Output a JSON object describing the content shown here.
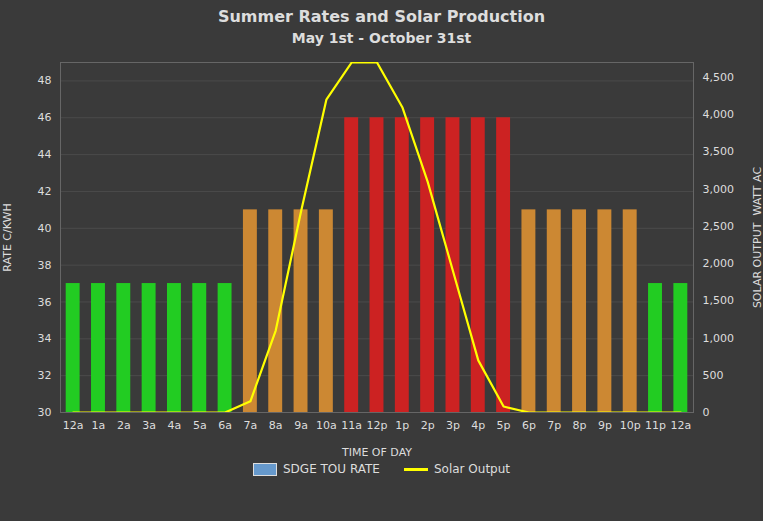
{
  "chart_data": {
    "type": "bar",
    "title": "Summer Rates and Solar Production",
    "subtitle": "May 1st - October 31st",
    "xlabel": "TIME OF DAY",
    "ylabel": "RATE C/KWH",
    "y2label": "SOLAR OUTPUT  WATT AC",
    "categories": [
      "12a",
      "1a",
      "2a",
      "3a",
      "4a",
      "5a",
      "6a",
      "7a",
      "8a",
      "9a",
      "10a",
      "11a",
      "12p",
      "1p",
      "2p",
      "3p",
      "4p",
      "5p",
      "6p",
      "7p",
      "8p",
      "9p",
      "10p",
      "11p",
      "12a"
    ],
    "series": [
      {
        "name": "SDGE TOU RATE",
        "type": "bar",
        "color": "#6699cc",
        "colors": [
          "#22cc22",
          "#22cc22",
          "#22cc22",
          "#22cc22",
          "#22cc22",
          "#22cc22",
          "#22cc22",
          "#cc8833",
          "#cc8833",
          "#cc8833",
          "#cc8833",
          "#cc2222",
          "#cc2222",
          "#cc2222",
          "#cc2222",
          "#cc2222",
          "#cc2222",
          "#cc2222",
          "#cc8833",
          "#cc8833",
          "#cc8833",
          "#cc8833",
          "#cc8833",
          "#22cc22",
          "#22cc22"
        ],
        "values": [
          37,
          37,
          37,
          37,
          37,
          37,
          37,
          41,
          41,
          41,
          41,
          46,
          46,
          46,
          46,
          46,
          46,
          46,
          41,
          41,
          41,
          41,
          41,
          37,
          37
        ]
      },
      {
        "name": "Solar Output",
        "type": "line",
        "axis": "y2",
        "color": "#ffff00",
        "values": [
          0,
          0,
          0,
          0,
          0,
          0,
          0,
          150,
          1100,
          2700,
          4200,
          4700,
          4700,
          4100,
          3100,
          1900,
          700,
          80,
          0,
          0,
          0,
          0,
          0,
          0,
          0
        ]
      }
    ],
    "ylim": [
      30,
      49
    ],
    "yticks": [
      30,
      32,
      34,
      36,
      38,
      40,
      42,
      44,
      46,
      48
    ],
    "y2lim": [
      0,
      4700
    ],
    "y2ticks": [
      0,
      500,
      1000,
      1500,
      2000,
      2500,
      3000,
      3500,
      4000,
      4500
    ],
    "grid": true,
    "legend": "bottom"
  }
}
